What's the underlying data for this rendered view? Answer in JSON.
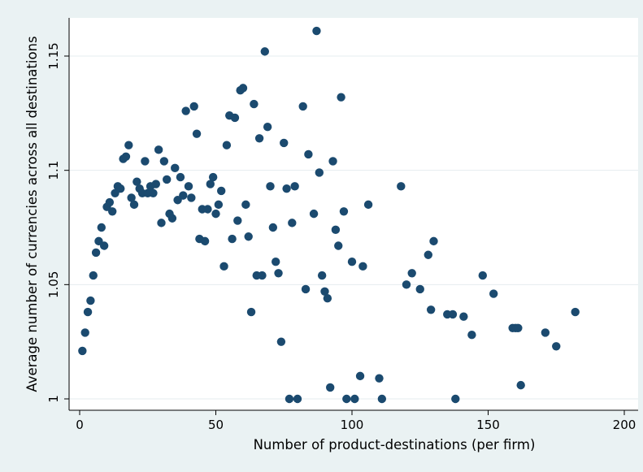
{
  "chart_data": {
    "type": "scatter",
    "title": "",
    "xlabel": "Number of product-destinations (per firm)",
    "ylabel": "Average number of currencies across all destinations",
    "xlim": [
      0,
      200
    ],
    "ylim": [
      1,
      1.16
    ],
    "x_ticks": [
      0,
      50,
      100,
      150,
      200
    ],
    "y_ticks": [
      1,
      1.05,
      1.1,
      1.15
    ],
    "x_tick_labels": [
      "0",
      "50",
      "100",
      "150",
      "200"
    ],
    "y_tick_labels": [
      "1",
      "1.05",
      "1.1",
      "1.15"
    ],
    "grid": "horizontal",
    "legend": "none",
    "colors": {
      "background": "#eaf2f3",
      "plot_area": "#ffffff",
      "marker": "#1b4a6f",
      "grid": "#e4ecef"
    },
    "points": [
      [
        1,
        1.021
      ],
      [
        2,
        1.029
      ],
      [
        3,
        1.038
      ],
      [
        4,
        1.043
      ],
      [
        5,
        1.054
      ],
      [
        6,
        1.064
      ],
      [
        7,
        1.069
      ],
      [
        8,
        1.075
      ],
      [
        9,
        1.067
      ],
      [
        10,
        1.084
      ],
      [
        11,
        1.086
      ],
      [
        12,
        1.082
      ],
      [
        13,
        1.09
      ],
      [
        14,
        1.093
      ],
      [
        15,
        1.092
      ],
      [
        16,
        1.105
      ],
      [
        17,
        1.106
      ],
      [
        18,
        1.111
      ],
      [
        19,
        1.088
      ],
      [
        20,
        1.085
      ],
      [
        21,
        1.095
      ],
      [
        22,
        1.092
      ],
      [
        23,
        1.09
      ],
      [
        24,
        1.104
      ],
      [
        25,
        1.09
      ],
      [
        26,
        1.093
      ],
      [
        27,
        1.09
      ],
      [
        28,
        1.094
      ],
      [
        29,
        1.109
      ],
      [
        30,
        1.077
      ],
      [
        31,
        1.104
      ],
      [
        32,
        1.096
      ],
      [
        33,
        1.081
      ],
      [
        34,
        1.079
      ],
      [
        35,
        1.101
      ],
      [
        36,
        1.087
      ],
      [
        37,
        1.097
      ],
      [
        38,
        1.089
      ],
      [
        39,
        1.126
      ],
      [
        40,
        1.093
      ],
      [
        41,
        1.088
      ],
      [
        42,
        1.128
      ],
      [
        43,
        1.116
      ],
      [
        44,
        1.07
      ],
      [
        45,
        1.083
      ],
      [
        46,
        1.069
      ],
      [
        47,
        1.083
      ],
      [
        48,
        1.094
      ],
      [
        49,
        1.097
      ],
      [
        50,
        1.081
      ],
      [
        51,
        1.085
      ],
      [
        52,
        1.091
      ],
      [
        53,
        1.058
      ],
      [
        54,
        1.111
      ],
      [
        55,
        1.124
      ],
      [
        56,
        1.07
      ],
      [
        57,
        1.123
      ],
      [
        58,
        1.078
      ],
      [
        59,
        1.135
      ],
      [
        60,
        1.136
      ],
      [
        61,
        1.085
      ],
      [
        62,
        1.071
      ],
      [
        63,
        1.038
      ],
      [
        64,
        1.129
      ],
      [
        65,
        1.054
      ],
      [
        66,
        1.114
      ],
      [
        67,
        1.054
      ],
      [
        68,
        1.152
      ],
      [
        69,
        1.119
      ],
      [
        70,
        1.093
      ],
      [
        71,
        1.075
      ],
      [
        72,
        1.06
      ],
      [
        73,
        1.055
      ],
      [
        74,
        1.025
      ],
      [
        75,
        1.112
      ],
      [
        76,
        1.092
      ],
      [
        77,
        1.0
      ],
      [
        78,
        1.077
      ],
      [
        79,
        1.093
      ],
      [
        80,
        1.0
      ],
      [
        82,
        1.128
      ],
      [
        83,
        1.048
      ],
      [
        84,
        1.107
      ],
      [
        86,
        1.081
      ],
      [
        87,
        1.161
      ],
      [
        88,
        1.099
      ],
      [
        89,
        1.054
      ],
      [
        90,
        1.047
      ],
      [
        91,
        1.044
      ],
      [
        92,
        1.005
      ],
      [
        93,
        1.104
      ],
      [
        94,
        1.074
      ],
      [
        95,
        1.067
      ],
      [
        96,
        1.132
      ],
      [
        97,
        1.082
      ],
      [
        98,
        1.0
      ],
      [
        100,
        1.06
      ],
      [
        101,
        1.0
      ],
      [
        103,
        1.01
      ],
      [
        104,
        1.058
      ],
      [
        106,
        1.085
      ],
      [
        110,
        1.009
      ],
      [
        111,
        1.0
      ],
      [
        118,
        1.093
      ],
      [
        120,
        1.05
      ],
      [
        122,
        1.055
      ],
      [
        125,
        1.048
      ],
      [
        128,
        1.063
      ],
      [
        129,
        1.039
      ],
      [
        130,
        1.069
      ],
      [
        135,
        1.037
      ],
      [
        137,
        1.037
      ],
      [
        138,
        1.0
      ],
      [
        141,
        1.036
      ],
      [
        144,
        1.028
      ],
      [
        148,
        1.054
      ],
      [
        152,
        1.046
      ],
      [
        159,
        1.031
      ],
      [
        160,
        1.031
      ],
      [
        161,
        1.031
      ],
      [
        162,
        1.006
      ],
      [
        171,
        1.029
      ],
      [
        175,
        1.023
      ],
      [
        182,
        1.038
      ]
    ]
  }
}
